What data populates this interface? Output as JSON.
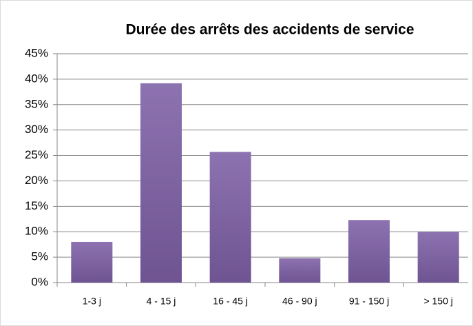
{
  "chart_data": {
    "type": "bar",
    "title": "Durée des arrêts des accidents de service",
    "categories": [
      "1-3 j",
      "4 - 15 j",
      "16 - 45 j",
      "46 - 90 j",
      "91 - 150 j",
      "> 150 j"
    ],
    "values": [
      8,
      39.2,
      25.7,
      4.8,
      12.3,
      10
    ],
    "color": "#7e5fa6",
    "ylim": [
      0,
      45
    ],
    "yticks": [
      {
        "value": 0,
        "label": "0%"
      },
      {
        "value": 5,
        "label": "5%"
      },
      {
        "value": 10,
        "label": "10%"
      },
      {
        "value": 15,
        "label": "15%"
      },
      {
        "value": 20,
        "label": "20%"
      },
      {
        "value": 25,
        "label": "25%"
      },
      {
        "value": 30,
        "label": "30%"
      },
      {
        "value": 35,
        "label": "35%"
      },
      {
        "value": 40,
        "label": "40%"
      },
      {
        "value": 45,
        "label": "45%"
      }
    ],
    "grid": true
  }
}
